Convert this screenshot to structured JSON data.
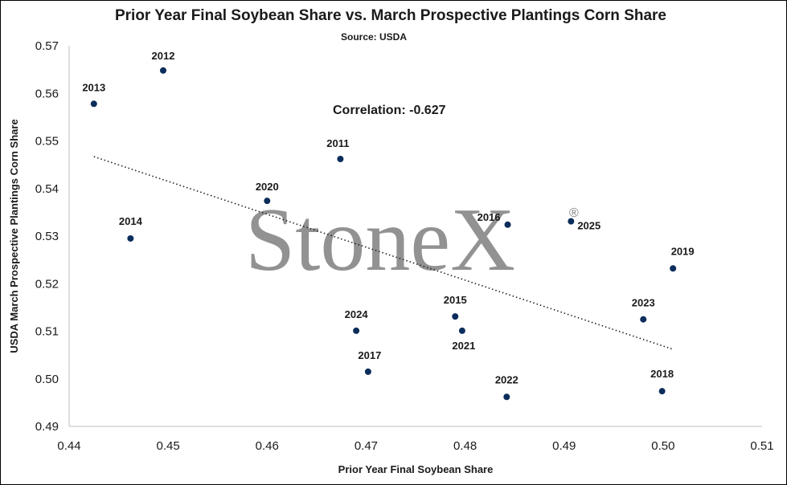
{
  "chart_data": {
    "type": "scatter",
    "title": "Prior Year Final Soybean Share vs. March Prospective Plantings Corn Share",
    "subtitle": "Source: USDA",
    "xlabel": "Prior Year Final Soybean Share",
    "ylabel": "USDA March Prospective Plantings Corn Share",
    "xlim": [
      0.44,
      0.51
    ],
    "ylim": [
      0.49,
      0.57
    ],
    "x_ticks": [
      "0.44",
      "0.45",
      "0.46",
      "0.47",
      "0.48",
      "0.49",
      "0.50",
      "0.51"
    ],
    "y_ticks": [
      "0.49",
      "0.50",
      "0.51",
      "0.52",
      "0.53",
      "0.54",
      "0.55",
      "0.56",
      "0.57"
    ],
    "grid": false,
    "marker_color": "#0b2d5b",
    "trendline": {
      "style": "dotted",
      "x": [
        0.4425,
        0.501
      ],
      "y": [
        0.5467,
        0.5062
      ]
    },
    "annotation": "Correlation: -0.627",
    "watermark": "StoneX",
    "watermark_mark": "®",
    "points": [
      {
        "label": "2013",
        "x": 0.4425,
        "y": 0.5578
      },
      {
        "label": "2012",
        "x": 0.4495,
        "y": 0.5648
      },
      {
        "label": "2014",
        "x": 0.4462,
        "y": 0.5295
      },
      {
        "label": "2011",
        "x": 0.4674,
        "y": 0.5462
      },
      {
        "label": "2020",
        "x": 0.46,
        "y": 0.5374
      },
      {
        "label": "2024",
        "x": 0.469,
        "y": 0.5101
      },
      {
        "label": "2017",
        "x": 0.4702,
        "y": 0.5015
      },
      {
        "label": "2015",
        "x": 0.479,
        "y": 0.5131
      },
      {
        "label": "2021",
        "x": 0.4797,
        "y": 0.5101
      },
      {
        "label": "2016",
        "x": 0.4843,
        "y": 0.5324
      },
      {
        "label": "2025",
        "x": 0.4907,
        "y": 0.5331
      },
      {
        "label": "2022",
        "x": 0.4842,
        "y": 0.4962
      },
      {
        "label": "2023",
        "x": 0.498,
        "y": 0.5125
      },
      {
        "label": "2018",
        "x": 0.4999,
        "y": 0.4974
      },
      {
        "label": "2019",
        "x": 0.501,
        "y": 0.5232
      }
    ]
  }
}
